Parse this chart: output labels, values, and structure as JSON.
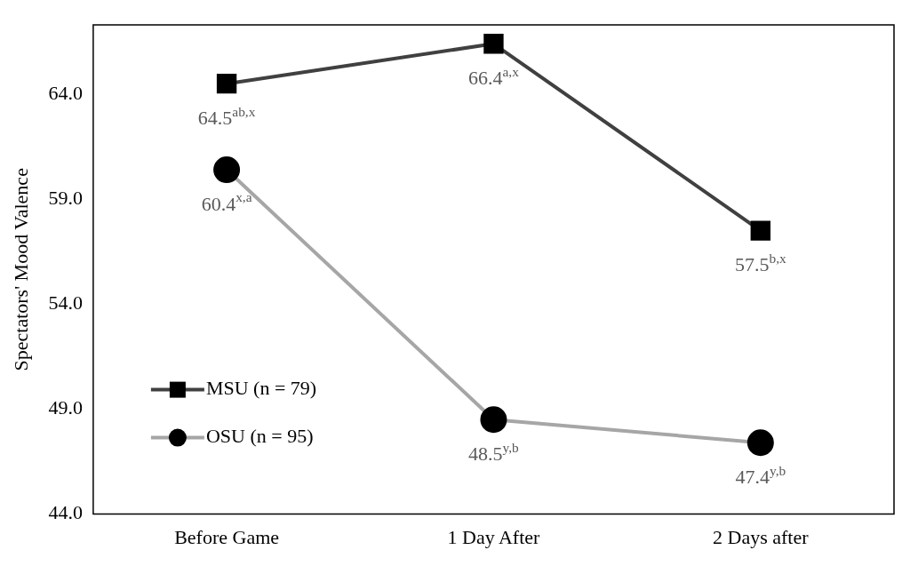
{
  "chart_data": {
    "type": "line",
    "ylabel": "Spectators' Mood Valence",
    "categories": [
      "Before Game",
      "1 Day After",
      "2 Days after"
    ],
    "series": [
      {
        "name": "MSU (n = 79)",
        "color": "#404040",
        "marker": "square",
        "values": [
          64.5,
          66.4,
          57.5
        ],
        "value_labels": [
          "64.5$^{ab,x}$",
          "66.4$^{a,x}$",
          "57.5$^{b,x}$"
        ]
      },
      {
        "name": "OSU (n = 95)",
        "color": "#a6a6a6",
        "marker": "circle",
        "values": [
          60.4,
          48.5,
          47.4
        ],
        "value_labels": [
          "60.4$^{x,a}$",
          "48.5$^{y,b}$",
          "47.4$^{y,b}$"
        ]
      }
    ],
    "ylim": [
      44,
      67.3
    ],
    "yticks": [
      {
        "value": 44,
        "label": "44.0"
      },
      {
        "value": 49,
        "label": "49.0"
      },
      {
        "value": 54,
        "label": "54.0"
      },
      {
        "value": 59,
        "label": "59.0"
      },
      {
        "value": 64,
        "label": "64.0"
      }
    ],
    "grid": false,
    "legend": "bottom left",
    "line_style": "solid"
  }
}
